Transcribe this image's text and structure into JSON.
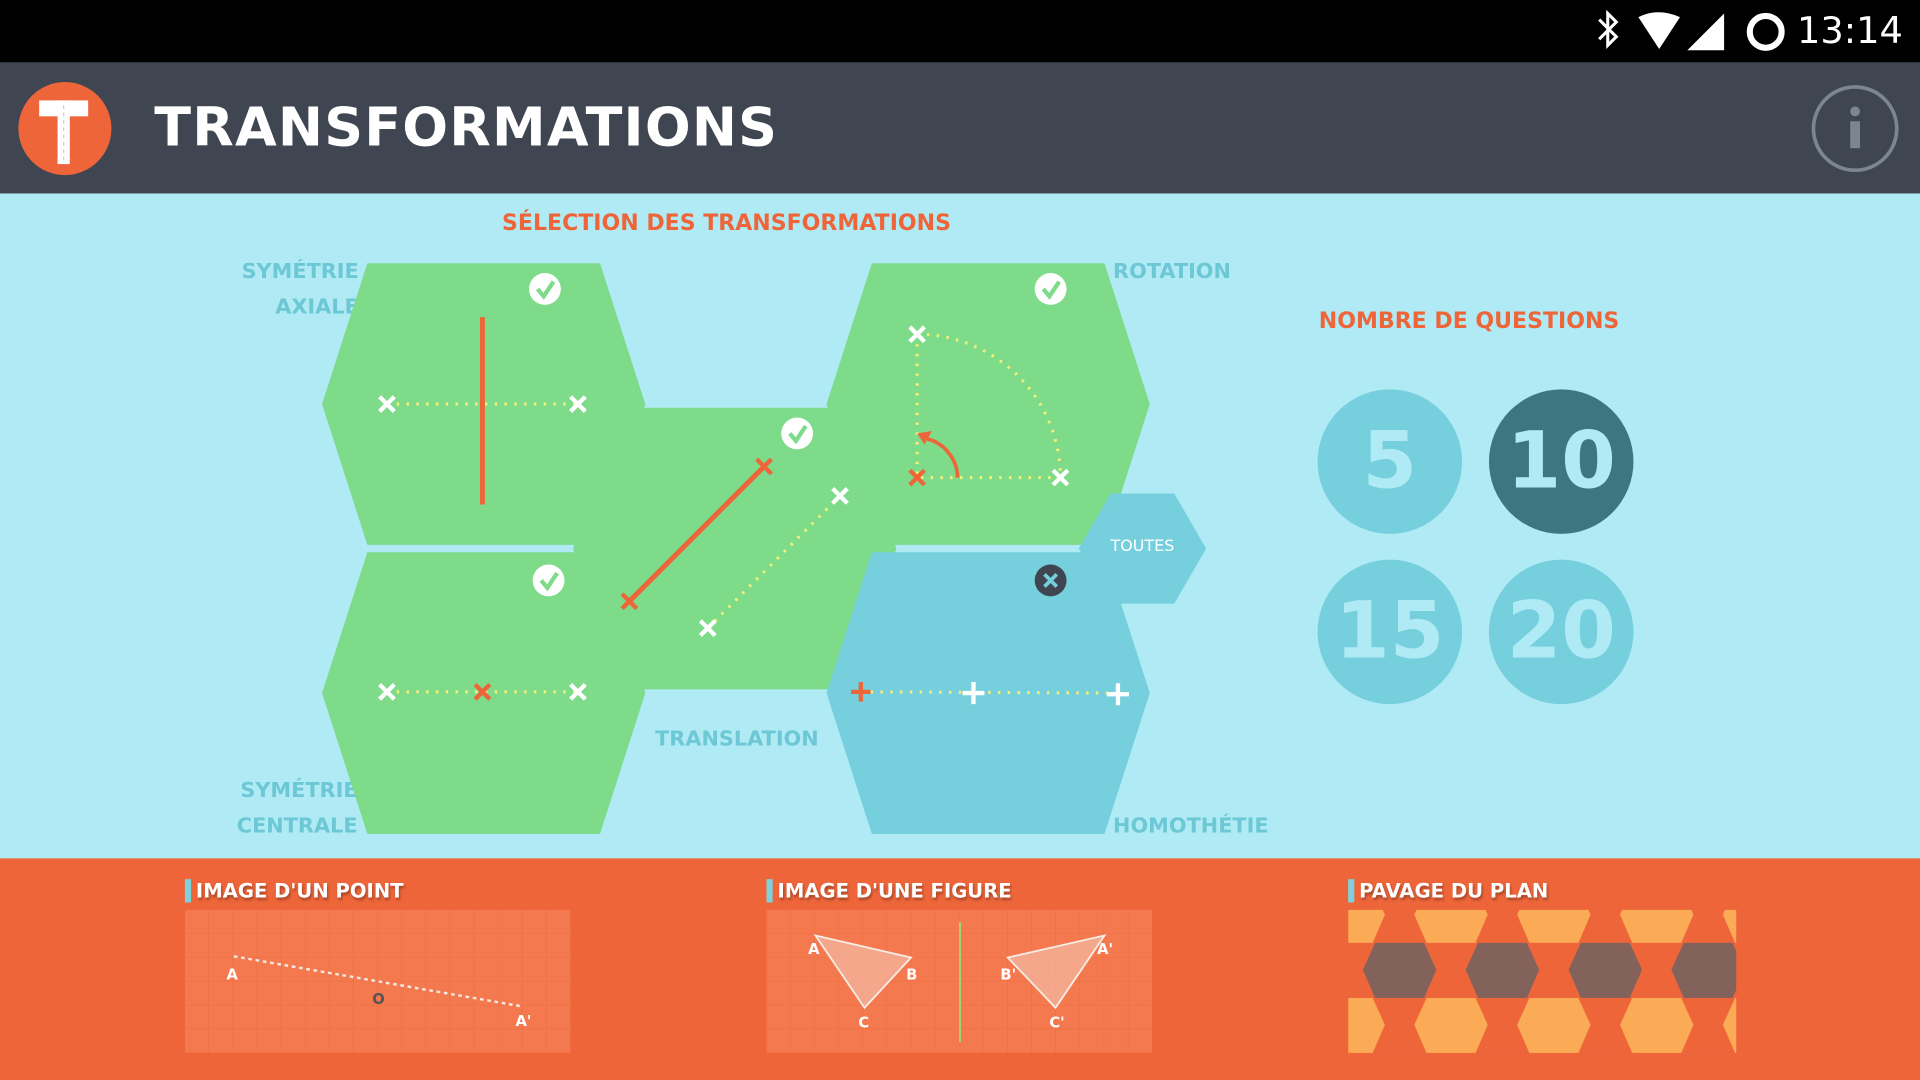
{
  "status_bar": {
    "time": "13:14",
    "icons": [
      "bluetooth-icon",
      "wifi-icon",
      "signal-icon",
      "sync-icon"
    ]
  },
  "header": {
    "logo_letter": "T",
    "title": "TRANSFORMATIONS",
    "info_icon": "info-icon"
  },
  "selection": {
    "title": "SÉLECTION DES TRANSFORMATIONS",
    "items": [
      {
        "label_1": "SYMÉTRIE",
        "label_2": "AXIALE",
        "selected": true
      },
      {
        "label": "TRANSLATION",
        "selected": true
      },
      {
        "label": "ROTATION",
        "selected": true
      },
      {
        "label_1": "SYMÉTRIE",
        "label_2": "CENTRALE",
        "selected": true
      },
      {
        "label": "HOMOTHÉTIE",
        "selected": false
      }
    ],
    "all_label": "TOUTES"
  },
  "questions": {
    "title": "NOMBRE DE QUESTIONS",
    "options": [
      "5",
      "10",
      "15",
      "20"
    ],
    "selected": "10"
  },
  "modes": [
    {
      "title": "IMAGE D'UN POINT",
      "points": [
        "A",
        "O",
        "A'"
      ]
    },
    {
      "title": "IMAGE D'UNE FIGURE",
      "points": [
        "A",
        "B",
        "C",
        "A'",
        "B'",
        "C'"
      ]
    },
    {
      "title": "PAVAGE DU PLAN"
    }
  ],
  "colors": {
    "green": "#7ddb8a",
    "blue_hex": "#76cfdd",
    "background": "#b0ebf5",
    "orange": "#ee653a",
    "header": "#404651",
    "selected_circle": "#3d7680"
  }
}
